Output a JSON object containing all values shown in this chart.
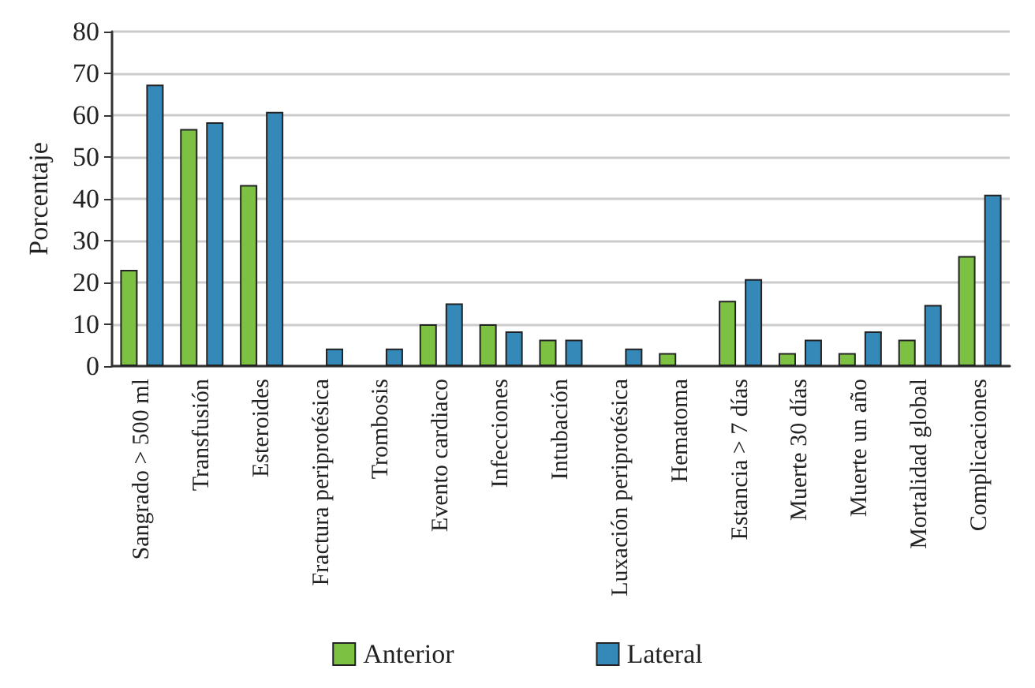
{
  "chart_data": {
    "type": "bar",
    "ylabel": "Porcentaje",
    "categories": [
      "Sangrado > 500 ml",
      "Transfusión",
      "Esteroides",
      "Fractura periprotésica",
      "Trombosis",
      "Evento cardiaco",
      "Infecciones",
      "Intubación",
      "Luxación periprotésica",
      "Hematoma",
      "Estancia > 7 días",
      "Muerte 30 días",
      "Muerte un año",
      "Mortalidad global",
      "Complicaciones"
    ],
    "series": [
      {
        "name": "Anterior",
        "color": "#7dc142",
        "values": [
          23,
          56.7,
          43.3,
          null,
          null,
          10,
          10,
          6.3,
          null,
          3.1,
          15.6,
          3.1,
          3.1,
          6.3,
          26.3
        ]
      },
      {
        "name": "Lateral",
        "color": "#3589b9",
        "values": [
          67.3,
          58.3,
          60.8,
          4.2,
          4.2,
          15,
          8.3,
          6.3,
          4.2,
          null,
          20.8,
          6.3,
          8.3,
          14.6,
          41
        ]
      }
    ],
    "ylim": [
      0,
      80
    ],
    "yticks": [
      0,
      10,
      20,
      30,
      40,
      50,
      60,
      70,
      80
    ],
    "grid": "y",
    "legend": "bottom"
  }
}
